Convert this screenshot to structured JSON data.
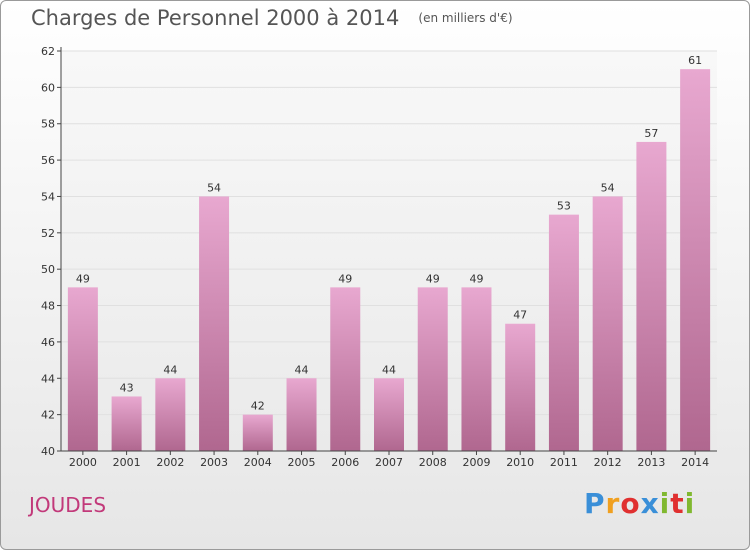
{
  "header": {
    "title": "Charges de Personnel 2000 à 2014",
    "subtitle": "(en milliers d'€)"
  },
  "footer": {
    "commune": "JOUDES",
    "logo_text": "Proxiti",
    "logo_colors": [
      "#3a8fd8",
      "#f0a020",
      "#e03030",
      "#3a8fd8",
      "#80b830",
      "#e03030",
      "#80b830"
    ]
  },
  "colors": {
    "bar_light": "#e8a8d0",
    "bar_dark": "#b0678f",
    "axis": "#444444",
    "grid": "#e0e0e0"
  },
  "chart_data": {
    "type": "bar",
    "title": "Charges de Personnel 2000 à 2014",
    "subtitle": "(en milliers d'€)",
    "xlabel": "",
    "ylabel": "",
    "categories": [
      "2000",
      "2001",
      "2002",
      "2003",
      "2004",
      "2005",
      "2006",
      "2007",
      "2008",
      "2009",
      "2010",
      "2011",
      "2012",
      "2013",
      "2014"
    ],
    "values": [
      49,
      43,
      44,
      54,
      42,
      44,
      49,
      44,
      49,
      49,
      47,
      53,
      54,
      57,
      61
    ],
    "ylim": [
      40,
      62
    ],
    "yticks": [
      40,
      42,
      44,
      46,
      48,
      50,
      52,
      54,
      56,
      58,
      60,
      62
    ],
    "grid": true,
    "data_labels": true
  }
}
